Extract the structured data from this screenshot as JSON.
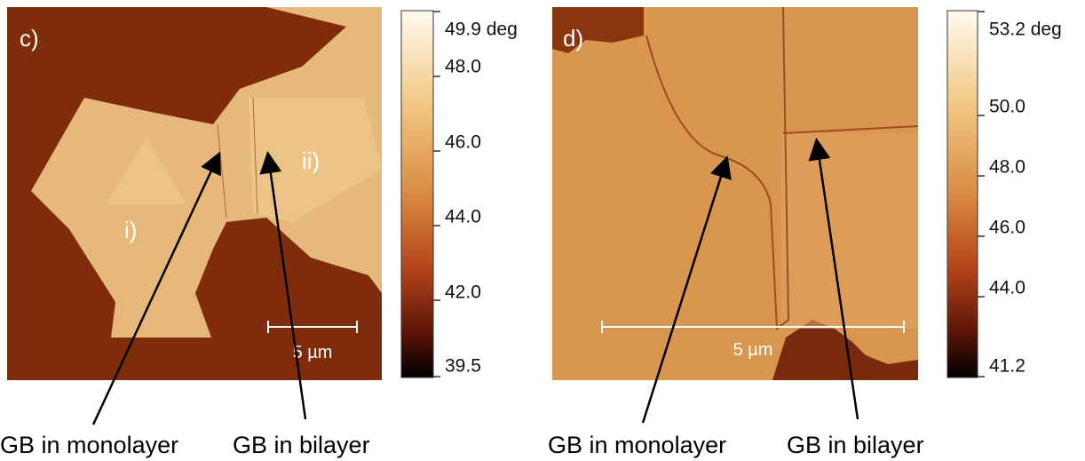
{
  "panels": [
    {
      "label": "c)",
      "regions": [
        "i)",
        "ii)"
      ],
      "scalebar": "5 µm",
      "colorbar": {
        "ticks": [
          "49.9 deg",
          "48.0",
          "46.0",
          "44.0",
          "42.0",
          "39.5"
        ]
      },
      "annotations": [
        "GB in monolayer",
        "GB in bilayer"
      ]
    },
    {
      "label": "d)",
      "scalebar": "5 µm",
      "colorbar": {
        "ticks": [
          "53.2 deg",
          "50.0",
          "48.0",
          "46.0",
          "44.0",
          "41.2"
        ]
      },
      "annotations": [
        "GB in monolayer",
        "GB in bilayer"
      ]
    }
  ]
}
